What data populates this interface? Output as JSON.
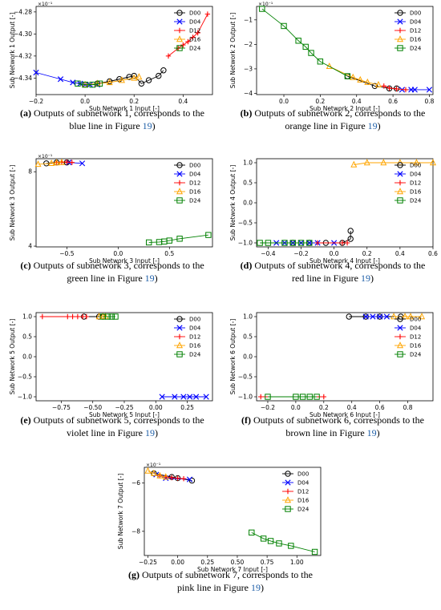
{
  "figure": {
    "legend_labels": [
      "D00",
      "D04",
      "D12",
      "D16",
      "D24"
    ],
    "series_colors": [
      "#000000",
      "#0000ff",
      "#ff0000",
      "#ffa500",
      "#008000"
    ],
    "series_markers": [
      "circle",
      "x",
      "plus",
      "triangle",
      "square"
    ]
  },
  "chart_data": [
    {
      "type": "line",
      "xlabel": "Sub Network 1 Input [-]",
      "ylabel": "Sub Network 1 Output [-]",
      "multiplier": "×10⁻¹",
      "xlim": [
        -0.2,
        0.52
      ],
      "ylim": [
        -4.355,
        -4.275
      ],
      "xticks": [
        -0.2,
        0.0,
        0.2,
        0.4
      ],
      "xticklabels": [
        "−0.2",
        "0.0",
        "0.2",
        "0.4"
      ],
      "yticks": [
        -4.34,
        -4.32,
        -4.3,
        -4.28
      ],
      "yticklabels": [
        "−4.34",
        "−4.32",
        "−4.30",
        "−4.28"
      ],
      "legend": "top-right",
      "series": [
        {
          "name": "D00",
          "x": [
            0.05,
            0.1,
            0.14,
            0.18,
            0.2,
            0.23,
            0.26,
            0.3,
            0.32
          ],
          "y": [
            -4.345,
            -4.343,
            -4.341,
            -4.339,
            -4.338,
            -4.345,
            -4.342,
            -4.338,
            -4.333
          ]
        },
        {
          "name": "D04",
          "x": [
            -0.2,
            -0.1,
            -0.05,
            -0.02,
            0.0,
            0.02,
            0.05
          ],
          "y": [
            -4.335,
            -4.341,
            -4.344,
            -4.345,
            -4.346,
            -4.346,
            -4.346
          ]
        },
        {
          "name": "D12",
          "x": [
            0.34,
            0.38,
            0.4,
            0.42,
            0.44,
            0.46,
            0.5
          ],
          "y": [
            -4.32,
            -4.313,
            -4.31,
            -4.307,
            -4.303,
            -4.299,
            -4.282
          ]
        },
        {
          "name": "D16",
          "x": [
            0.0,
            0.05,
            0.1,
            0.15,
            0.2,
            0.22
          ],
          "y": [
            -4.346,
            -4.345,
            -4.344,
            -4.342,
            -4.34,
            -4.339
          ]
        },
        {
          "name": "D24",
          "x": [
            -0.03,
            0.0,
            0.03,
            0.06
          ],
          "y": [
            -4.345,
            -4.346,
            -4.346,
            -4.345
          ]
        }
      ]
    },
    {
      "type": "line",
      "xlabel": "Sub Network 2 Input [-]",
      "ylabel": "Sub Network 2 Output [-]",
      "multiplier": "×10⁻¹",
      "xlim": [
        -0.15,
        0.82
      ],
      "ylim": [
        -4.05,
        -0.45
      ],
      "xticks": [
        0.0,
        0.2,
        0.4,
        0.6,
        0.8
      ],
      "xticklabels": [
        "0.0",
        "0.2",
        "0.4",
        "0.6",
        "0.8"
      ],
      "yticks": [
        -4,
        -3,
        -2,
        -1
      ],
      "yticklabels": [
        "−4",
        "−3",
        "−2",
        "−1"
      ],
      "legend": "top-right",
      "series": [
        {
          "name": "D00",
          "x": [
            0.35,
            0.5,
            0.58,
            0.62
          ],
          "y": [
            -3.3,
            -3.7,
            -3.8,
            -3.8
          ]
        },
        {
          "name": "D04",
          "x": [
            0.65,
            0.7,
            0.72,
            0.8
          ],
          "y": [
            -3.85,
            -3.85,
            -3.85,
            -3.85
          ]
        },
        {
          "name": "D12",
          "x": [
            0.55,
            0.58,
            0.62,
            0.67
          ],
          "y": [
            -3.7,
            -3.78,
            -3.82,
            -3.85
          ]
        },
        {
          "name": "D16",
          "x": [
            0.25,
            0.38,
            0.42,
            0.46,
            0.52
          ],
          "y": [
            -2.9,
            -3.35,
            -3.45,
            -3.55,
            -3.65
          ]
        },
        {
          "name": "D24",
          "x": [
            -0.12,
            0.0,
            0.08,
            0.12,
            0.15,
            0.2,
            0.35
          ],
          "y": [
            -0.55,
            -1.25,
            -1.85,
            -2.1,
            -2.35,
            -2.7,
            -3.3
          ]
        }
      ]
    },
    {
      "type": "line",
      "xlabel": "Sub Network 3 Input [-]",
      "ylabel": "Sub Network 3 Output [-]",
      "multiplier": "×10⁻¹",
      "xlim": [
        -0.8,
        0.92
      ],
      "ylim": [
        3.96,
        8.7
      ],
      "xticks": [
        -0.5,
        0.0,
        0.5
      ],
      "xticklabels": [
        "−0.5",
        "0.0",
        "0.5"
      ],
      "yticks": [
        4,
        8
      ],
      "yticklabels": [
        "4",
        "8"
      ],
      "legend": "top-right",
      "series": [
        {
          "name": "D00",
          "x": [
            -0.7,
            -0.6,
            -0.5
          ],
          "y": [
            8.45,
            8.5,
            8.5
          ]
        },
        {
          "name": "D04",
          "x": [
            -0.48,
            -0.35
          ],
          "y": [
            8.5,
            8.45
          ]
        },
        {
          "name": "D12",
          "x": [
            -0.6,
            -0.55,
            -0.5,
            -0.45
          ],
          "y": [
            8.5,
            8.52,
            8.52,
            8.5
          ]
        },
        {
          "name": "D16",
          "x": [
            -0.78,
            -0.65,
            -0.6,
            -0.55
          ],
          "y": [
            8.4,
            8.45,
            8.48,
            8.5
          ]
        },
        {
          "name": "D24",
          "x": [
            0.3,
            0.4,
            0.45,
            0.5,
            0.6,
            0.88
          ],
          "y": [
            4.2,
            4.22,
            4.25,
            4.3,
            4.4,
            4.6
          ]
        }
      ]
    },
    {
      "type": "line",
      "xlabel": "Sub Network 4 Input [-]",
      "ylabel": "Sub Network 4 Output [-]",
      "multiplier": "",
      "xlim": [
        -0.47,
        0.6
      ],
      "ylim": [
        -1.1,
        1.1
      ],
      "xticks": [
        -0.4,
        -0.2,
        0.0,
        0.2,
        0.4,
        0.6
      ],
      "xticklabels": [
        "−0.4",
        "−0.2",
        "0.0",
        "0.2",
        "0.4",
        "0.6"
      ],
      "yticks": [
        -1.0,
        -0.5,
        0.0,
        0.5,
        1.0
      ],
      "yticklabels": [
        "−1.0",
        "−0.5",
        "0.0",
        "0.5",
        "1.0"
      ],
      "legend": "right",
      "series": [
        {
          "name": "D00",
          "x": [
            -0.25,
            -0.15,
            -0.05,
            0.05,
            0.1,
            0.1
          ],
          "y": [
            -1.0,
            -1.0,
            -1.0,
            -1.0,
            -0.9,
            -0.7
          ]
        },
        {
          "name": "D04",
          "x": [
            -0.35,
            -0.3,
            -0.25,
            -0.2,
            -0.15,
            -0.1,
            0.0
          ],
          "y": [
            -1.0,
            -1.0,
            -1.0,
            -1.0,
            -1.0,
            -1.0,
            -1.0
          ]
        },
        {
          "name": "D12",
          "x": [
            -0.1,
            0.05,
            0.08
          ],
          "y": [
            -1.0,
            -1.0,
            -1.0
          ]
        },
        {
          "name": "D16",
          "x": [
            0.12,
            0.2,
            0.3,
            0.4,
            0.5,
            0.6
          ],
          "y": [
            0.95,
            1.0,
            1.0,
            1.0,
            1.0,
            1.0
          ]
        },
        {
          "name": "D24",
          "x": [
            -0.45,
            -0.4,
            -0.3,
            -0.25,
            -0.2,
            -0.15
          ],
          "y": [
            -1.0,
            -1.0,
            -1.0,
            -1.0,
            -1.0,
            -1.0
          ]
        }
      ]
    },
    {
      "type": "line",
      "xlabel": "Sub Network 5 Input [-]",
      "ylabel": "Sub Network 5 Output [-]",
      "multiplier": "",
      "xlim": [
        -0.95,
        0.45
      ],
      "ylim": [
        -1.1,
        1.1
      ],
      "xticks": [
        -0.75,
        -0.5,
        -0.25,
        0.0,
        0.25
      ],
      "xticklabels": [
        "−0.75",
        "−0.50",
        "−0.25",
        "0.00",
        "0.25"
      ],
      "yticks": [
        -1.0,
        -0.5,
        0.0,
        0.5,
        1.0
      ],
      "yticklabels": [
        "−1.0",
        "−0.5",
        "0.0",
        "0.5",
        "1.0"
      ],
      "legend": "top-right",
      "series": [
        {
          "name": "D00",
          "x": [
            -0.57,
            -0.45,
            -0.42
          ],
          "y": [
            1.0,
            1.0,
            1.0
          ]
        },
        {
          "name": "D04",
          "x": [
            0.05,
            0.15,
            0.22,
            0.27,
            0.32,
            0.4
          ],
          "y": [
            -1.0,
            -1.0,
            -1.0,
            -1.0,
            -1.0,
            -1.0
          ]
        },
        {
          "name": "D12",
          "x": [
            -0.9,
            -0.7,
            -0.66,
            -0.62,
            -0.58,
            -0.55
          ],
          "y": [
            1.0,
            1.0,
            1.0,
            1.0,
            1.0,
            1.0
          ]
        },
        {
          "name": "D16",
          "x": [
            -0.45,
            -0.42,
            -0.4
          ],
          "y": [
            1.0,
            1.0,
            1.0
          ]
        },
        {
          "name": "D24",
          "x": [
            -0.42,
            -0.38,
            -0.35,
            -0.32
          ],
          "y": [
            1.0,
            1.0,
            1.0,
            1.0
          ]
        }
      ]
    },
    {
      "type": "line",
      "xlabel": "Sub Network 6 Input [-]",
      "ylabel": "Sub Network 6 Output [-]",
      "multiplier": "",
      "xlim": [
        -0.28,
        0.98
      ],
      "ylim": [
        -1.1,
        1.1
      ],
      "xticks": [
        -0.2,
        0.0,
        0.2,
        0.4,
        0.6,
        0.8
      ],
      "xticklabels": [
        "−0.2",
        "0.0",
        "0.2",
        "0.4",
        "0.6",
        "0.8"
      ],
      "yticks": [
        -1.0,
        -0.5,
        0.0,
        0.5,
        1.0
      ],
      "yticklabels": [
        "−1.0",
        "−0.5",
        "0.0",
        "0.5",
        "1.0"
      ],
      "legend": "right",
      "series": [
        {
          "name": "D00",
          "x": [
            0.38,
            0.5,
            0.6,
            0.75
          ],
          "y": [
            1.0,
            1.0,
            1.0,
            1.0
          ]
        },
        {
          "name": "D04",
          "x": [
            0.5,
            0.55,
            0.6,
            0.65
          ],
          "y": [
            1.0,
            1.0,
            1.0,
            1.0
          ]
        },
        {
          "name": "D12",
          "x": [
            -0.25,
            0.2
          ],
          "y": [
            -1.0,
            -1.0
          ]
        },
        {
          "name": "D16",
          "x": [
            0.7,
            0.78,
            0.82,
            0.9
          ],
          "y": [
            1.0,
            1.0,
            1.0,
            1.0
          ]
        },
        {
          "name": "D24",
          "x": [
            -0.2,
            0.0,
            0.05,
            0.1,
            0.15
          ],
          "y": [
            -1.0,
            -1.0,
            -1.0,
            -1.0,
            -1.0
          ]
        }
      ]
    },
    {
      "type": "line",
      "xlabel": "Sub Network 7 Input [-]",
      "ylabel": "Sub Network 7 Output [-]",
      "multiplier": "×10⁻¹",
      "xlim": [
        -0.28,
        1.2
      ],
      "ylim": [
        -9.0,
        -5.35
      ],
      "xticks": [
        -0.25,
        0.0,
        0.25,
        0.5,
        0.75,
        1.0
      ],
      "xticklabels": [
        "−0.25",
        "0.00",
        "0.25",
        "0.50",
        "0.75",
        "1.00"
      ],
      "yticks": [
        -8,
        -6
      ],
      "yticklabels": [
        "−8",
        "−6"
      ],
      "legend": "top-right",
      "series": [
        {
          "name": "D00",
          "x": [
            -0.2,
            -0.05,
            0.0,
            0.12
          ],
          "y": [
            -5.6,
            -5.75,
            -5.8,
            -5.9
          ]
        },
        {
          "name": "D04",
          "x": [
            -0.18,
            -0.1,
            0.1
          ],
          "y": [
            -5.65,
            -5.8,
            -5.85
          ]
        },
        {
          "name": "D12",
          "x": [
            -0.15,
            -0.1,
            -0.05,
            0.0,
            0.05
          ],
          "y": [
            -5.7,
            -5.75,
            -5.78,
            -5.8,
            -5.82
          ]
        },
        {
          "name": "D16",
          "x": [
            -0.25,
            -0.2,
            -0.15,
            -0.1
          ],
          "y": [
            -5.5,
            -5.6,
            -5.7,
            -5.75
          ]
        },
        {
          "name": "D24",
          "x": [
            0.62,
            0.72,
            0.78,
            0.85,
            0.95,
            1.15
          ],
          "y": [
            -8.05,
            -8.3,
            -8.4,
            -8.5,
            -8.6,
            -8.85
          ]
        }
      ]
    }
  ],
  "captions": [
    {
      "tag": "(a)",
      "lines": [
        "Outputs of subnetwork 1, corresponds to the",
        "blue line in Figure "
      ],
      "ref": "19",
      "end": ")"
    },
    {
      "tag": "(b)",
      "lines": [
        "Outputs of subnetwork 2, corresponds to the",
        "orange line in Figure "
      ],
      "ref": "19",
      "end": ")"
    },
    {
      "tag": "(c)",
      "lines": [
        "Outputs of subnetwork 3, corresponds to the",
        "green line in Figure "
      ],
      "ref": "19",
      "end": ")"
    },
    {
      "tag": "(d)",
      "lines": [
        "Outputs of subnetwork 4, corresponds to the",
        "red line in Figure "
      ],
      "ref": "19",
      "end": ")"
    },
    {
      "tag": "(e)",
      "lines": [
        "Outputs of subnetwork 5, corresponds to the",
        "violet line in Figure "
      ],
      "ref": "19",
      "end": ")"
    },
    {
      "tag": "(f)",
      "lines": [
        "Outputs of subnetwork 6, corresponds to the",
        "brown line in Figure "
      ],
      "ref": "19",
      "end": ")"
    },
    {
      "tag": "(g)",
      "lines": [
        "Outputs of subnetwork 7, corresponds to the",
        "pink line in Figure "
      ],
      "ref": "19",
      "end": ")"
    }
  ]
}
